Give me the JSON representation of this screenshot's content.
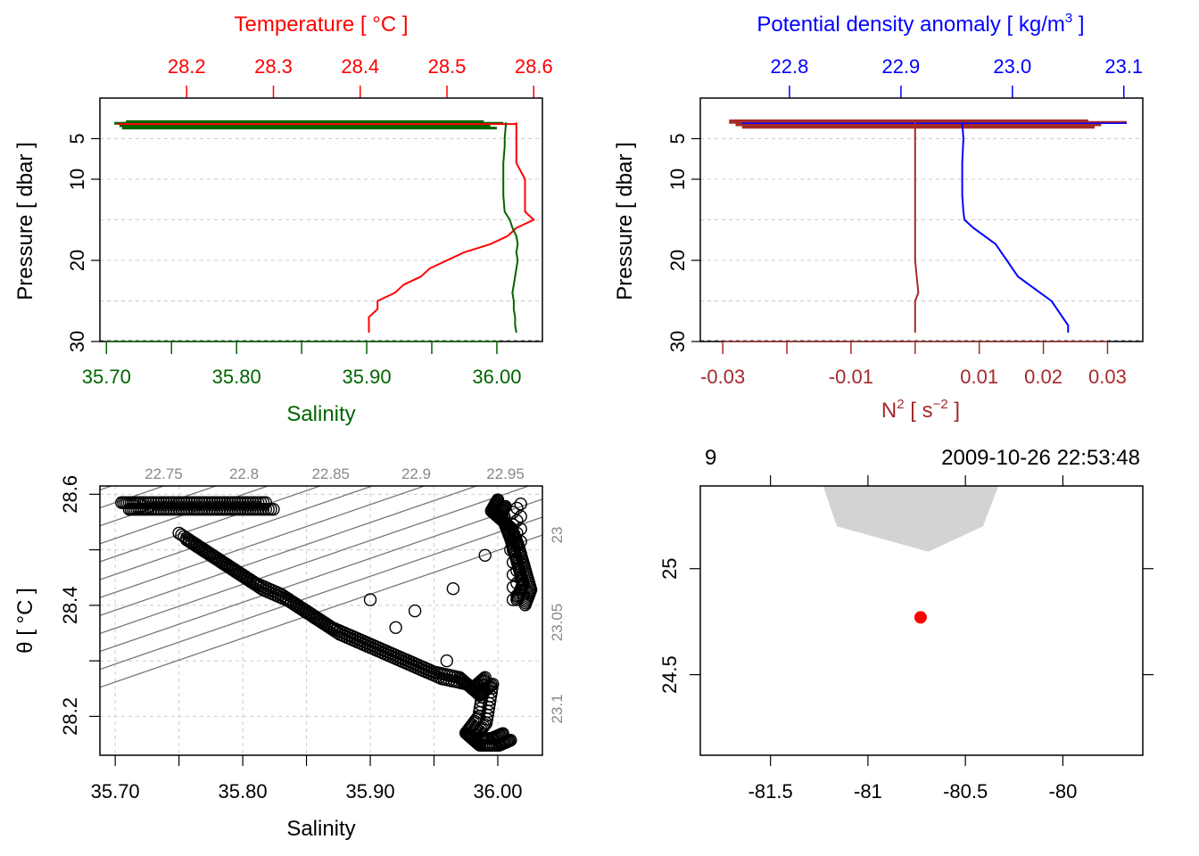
{
  "colors": {
    "temperature": "#ff0000",
    "salinity": "#006400",
    "density": "#0000ff",
    "n2": "#a52a2a",
    "grid": "#cccccc",
    "isopycnal": "#777777",
    "land": "#d3d3d3",
    "station": "#ff0000"
  },
  "chart_data": [
    {
      "name": "profile-temperature-salinity",
      "type": "line",
      "top_axis_label": "Temperature [ °C ]",
      "top_ticks": [
        "28.2",
        "28.3",
        "28.4",
        "28.5",
        "28.6"
      ],
      "top_range": [
        28.1,
        28.61
      ],
      "bottom_axis_label": "Salinity",
      "bottom_ticks": [
        "35.70",
        "35.80",
        "35.90",
        "36.00"
      ],
      "bottom_range": [
        35.695,
        36.035
      ],
      "ylabel": "Pressure [ dbar ]",
      "y_ticks": [
        "5",
        "10",
        "20",
        "30"
      ],
      "y_range": [
        0,
        30
      ],
      "y_reversed": true,
      "series": [
        {
          "name": "Temperature",
          "pressure": [
            3,
            5,
            6,
            8,
            10,
            12,
            14,
            15,
            16,
            17,
            18,
            19,
            20,
            21,
            22,
            23,
            24,
            25,
            26,
            27,
            28,
            28.9
          ],
          "values": [
            28.58,
            28.58,
            28.58,
            28.58,
            28.59,
            28.59,
            28.59,
            28.6,
            28.58,
            28.57,
            28.55,
            28.52,
            28.5,
            28.48,
            28.47,
            28.45,
            28.44,
            28.42,
            28.42,
            28.41,
            28.41,
            28.41
          ]
        },
        {
          "name": "Salinity",
          "pressure": [
            3,
            5,
            6,
            8,
            10,
            12,
            14,
            15,
            16,
            17,
            18,
            19,
            20,
            21,
            22,
            23,
            24,
            25,
            26,
            27,
            28,
            28.9
          ],
          "values": [
            36.007,
            36.006,
            36.006,
            36.005,
            36.005,
            36.005,
            36.006,
            36.01,
            36.012,
            36.015,
            36.016,
            36.015,
            36.016,
            36.015,
            36.014,
            36.013,
            36.012,
            36.013,
            36.013,
            36.014,
            36.014,
            36.015
          ]
        }
      ]
    },
    {
      "name": "profile-density-n2",
      "type": "line",
      "top_axis_label": "Potential density anomaly [ kg/m3 ]",
      "top_ticks": [
        "22.8",
        "22.9",
        "23.0",
        "23.1"
      ],
      "top_range": [
        22.72,
        23.117
      ],
      "bottom_axis_label": "N2 [ s-2 ]",
      "bottom_ticks": [
        "-0.03",
        "-0.01",
        "0.01",
        "0.02",
        "0.03"
      ],
      "bottom_range": [
        -0.0335,
        0.0355
      ],
      "ylabel": "Pressure [ dbar ]",
      "y_ticks": [
        "5",
        "10",
        "20",
        "30"
      ],
      "y_range": [
        0,
        30
      ],
      "y_reversed": true,
      "series": [
        {
          "name": "Potential density anomaly",
          "pressure": [
            3,
            5,
            8,
            10,
            12,
            14,
            15,
            16,
            17,
            18,
            19,
            20,
            21,
            22,
            23,
            24,
            25,
            26,
            27,
            28,
            28.9
          ],
          "values": [
            22.955,
            22.956,
            22.955,
            22.955,
            22.955,
            22.956,
            22.957,
            22.965,
            22.975,
            22.985,
            22.99,
            22.995,
            23.0,
            23.005,
            23.015,
            23.025,
            23.035,
            23.04,
            23.045,
            23.05,
            23.05
          ]
        },
        {
          "name": "N2",
          "pressure": [
            3,
            10,
            20,
            24,
            25,
            28.9
          ],
          "values": [
            0.0,
            0.0,
            0.0,
            0.0005,
            0.0,
            0.0
          ]
        }
      ]
    },
    {
      "name": "ts-diagram",
      "type": "scatter",
      "xlabel": "Salinity",
      "x_ticks": [
        "35.70",
        "35.80",
        "35.90",
        "36.00"
      ],
      "xlim": [
        35.688,
        36.035
      ],
      "ylabel": "θ [ °C ]",
      "y_ticks": [
        "28.2",
        "28.4",
        "28.6"
      ],
      "ylim": [
        28.13,
        28.615
      ],
      "isopycnal_labels": [
        "22.75",
        "22.8",
        "22.85",
        "22.9",
        "22.95",
        "23",
        "23.05",
        "23.1"
      ],
      "x": [
        35.705,
        35.72,
        35.74,
        35.76,
        35.78,
        35.8,
        35.82,
        35.75,
        35.77,
        35.79,
        35.81,
        35.83,
        35.85,
        35.87,
        35.89,
        35.91,
        35.93,
        35.95,
        35.97,
        35.98,
        35.99,
        35.985,
        35.975,
        35.98,
        35.995,
        36.005,
        36.0,
        35.995,
        36.005,
        36.01,
        36.015,
        36.02,
        36.015,
        36.01,
        36.005,
        35.99,
        35.965,
        35.935,
        35.9,
        35.92,
        35.96
      ],
      "y": [
        28.585,
        28.585,
        28.585,
        28.585,
        28.585,
        28.585,
        28.585,
        28.53,
        28.5,
        28.47,
        28.44,
        28.42,
        28.39,
        28.36,
        28.34,
        28.32,
        28.3,
        28.28,
        28.27,
        28.25,
        28.27,
        28.2,
        28.17,
        28.16,
        28.16,
        28.17,
        28.59,
        28.57,
        28.55,
        28.52,
        28.48,
        28.44,
        28.41,
        28.5,
        28.56,
        28.49,
        28.43,
        28.39,
        28.41,
        28.36,
        28.3
      ]
    },
    {
      "name": "station-map",
      "type": "scatter",
      "xlabel": "",
      "ylabel": "",
      "x_ticks": [
        "-81.5",
        "-81",
        "-80.5",
        "-80"
      ],
      "xlim": [
        -81.86,
        -79.59
      ],
      "y_ticks": [
        "24.5",
        "25"
      ],
      "ylim": [
        24.12,
        25.39
      ],
      "top_left_label": "9",
      "top_right_label": "2009-10-26 22:53:48",
      "station": {
        "lon": -80.73,
        "lat": 24.77
      },
      "land_lon": [
        -81.23,
        -81.16,
        -80.69,
        -80.41,
        -80.33
      ],
      "land_lat": [
        25.39,
        25.2,
        25.08,
        25.2,
        25.39
      ]
    }
  ]
}
